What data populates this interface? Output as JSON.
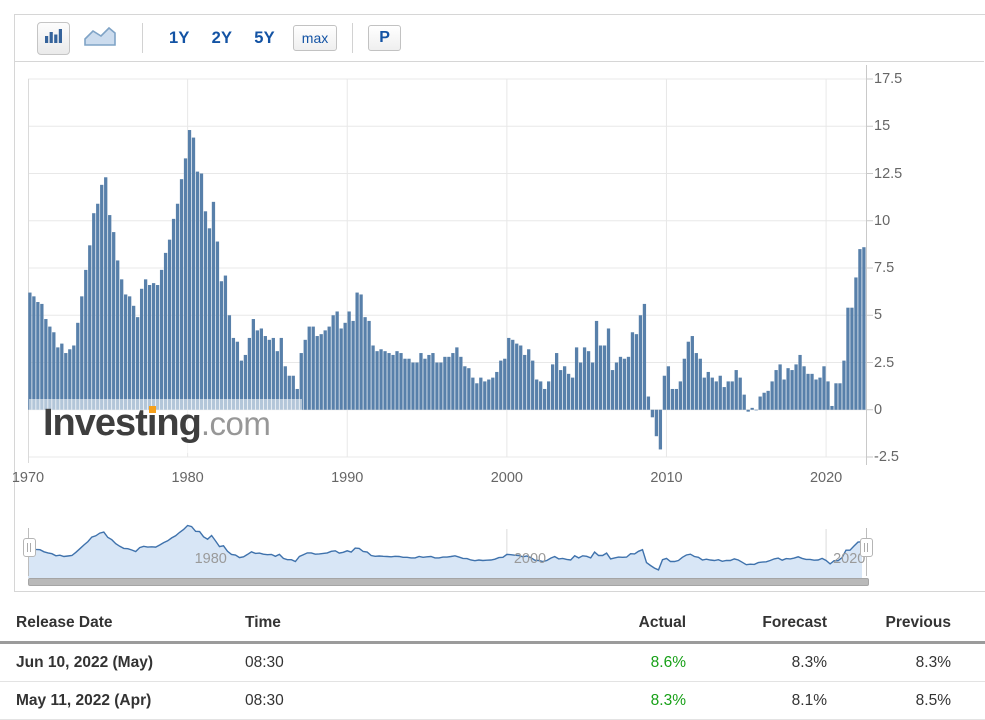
{
  "toolbar": {
    "chart_type_buttons": [
      {
        "name": "bar-chart",
        "selected": true
      },
      {
        "name": "area-chart",
        "selected": false
      }
    ],
    "range_buttons": [
      "1Y",
      "2Y",
      "5Y"
    ],
    "max_button": "max",
    "p_button": "P"
  },
  "logo": {
    "name": "Investing",
    "tld": ".com"
  },
  "chart_data": {
    "type": "bar",
    "title": "",
    "xlabel": "",
    "ylabel": "",
    "xlim": [
      1970,
      2022.5
    ],
    "ylim": [
      -2.5,
      17.5
    ],
    "x_ticks": [
      1970,
      1980,
      1990,
      2000,
      2010,
      2020
    ],
    "y_ticks": [
      17.5,
      15,
      12.5,
      10,
      7.5,
      5,
      2.5,
      0,
      -2.5
    ],
    "x_start": 1970,
    "x_step_years": 0.25,
    "grid": true,
    "bar_color": "#5880aa",
    "values": [
      6.2,
      6.0,
      5.7,
      5.6,
      4.8,
      4.4,
      4.1,
      3.3,
      3.5,
      3.0,
      3.2,
      3.4,
      4.6,
      6.0,
      7.4,
      8.7,
      10.4,
      10.9,
      11.9,
      12.3,
      10.3,
      9.4,
      7.9,
      6.9,
      6.1,
      6.0,
      5.5,
      4.9,
      6.4,
      6.9,
      6.6,
      6.7,
      6.6,
      7.4,
      8.3,
      9.0,
      10.1,
      10.9,
      12.2,
      13.3,
      14.8,
      14.4,
      12.6,
      12.5,
      10.5,
      9.6,
      11.0,
      8.9,
      6.8,
      7.1,
      5.0,
      3.8,
      3.6,
      2.6,
      2.9,
      3.8,
      4.8,
      4.2,
      4.3,
      3.9,
      3.7,
      3.8,
      3.1,
      3.8,
      2.3,
      1.8,
      1.8,
      1.1,
      3.0,
      3.7,
      4.4,
      4.4,
      3.9,
      4.0,
      4.2,
      4.4,
      5.0,
      5.2,
      4.3,
      4.6,
      5.2,
      4.7,
      6.2,
      6.1,
      4.9,
      4.7,
      3.4,
      3.1,
      3.2,
      3.1,
      3.0,
      2.9,
      3.1,
      3.0,
      2.7,
      2.7,
      2.5,
      2.5,
      3.0,
      2.7,
      2.9,
      3.0,
      2.5,
      2.5,
      2.8,
      2.8,
      3.0,
      3.3,
      2.8,
      2.3,
      2.2,
      1.7,
      1.4,
      1.7,
      1.5,
      1.6,
      1.7,
      2.0,
      2.6,
      2.7,
      3.8,
      3.7,
      3.5,
      3.4,
      2.9,
      3.2,
      2.6,
      1.6,
      1.5,
      1.1,
      1.5,
      2.4,
      3.0,
      2.1,
      2.3,
      1.9,
      1.7,
      3.3,
      2.5,
      3.3,
      3.1,
      2.5,
      4.7,
      3.4,
      3.4,
      4.3,
      2.1,
      2.5,
      2.8,
      2.7,
      2.8,
      4.1,
      4.0,
      5.0,
      5.6,
      0.7,
      -0.4,
      -1.4,
      -2.1,
      1.8,
      2.3,
      1.1,
      1.1,
      1.5,
      2.7,
      3.6,
      3.9,
      3.0,
      2.7,
      1.7,
      2.0,
      1.7,
      1.5,
      1.8,
      1.2,
      1.5,
      1.5,
      2.1,
      1.7,
      0.8,
      -0.1,
      0.1,
      0.0,
      0.7,
      0.9,
      1.0,
      1.5,
      2.1,
      2.4,
      1.6,
      2.2,
      2.1,
      2.4,
      2.9,
      2.3,
      1.9,
      1.9,
      1.6,
      1.7,
      2.3,
      1.5,
      0.2,
      1.4,
      1.4,
      2.6,
      5.4,
      5.4,
      7.0,
      8.5,
      8.6
    ]
  },
  "navigator": {
    "x_labels": [
      "1980",
      "2000",
      "2020"
    ],
    "line_color": "#3f72ac",
    "fill_color": "#d8e6f6"
  },
  "table": {
    "headers": [
      "Release Date",
      "Time",
      "Actual",
      "Forecast",
      "Previous"
    ],
    "rows": [
      {
        "release_date": "Jun 10, 2022 (May)",
        "time": "08:30",
        "actual": "8.6%",
        "forecast": "8.3%",
        "previous": "8.3%"
      },
      {
        "release_date": "May 11, 2022 (Apr)",
        "time": "08:30",
        "actual": "8.3%",
        "forecast": "8.1%",
        "previous": "8.5%"
      }
    ],
    "actual_color": "#17a017"
  },
  "colors": {
    "accent_blue": "#1353a4",
    "bar": "#5880aa",
    "gridline": "#e8e8e8",
    "axis_text": "#666666",
    "logo_dot_orange": "#f6a01b"
  }
}
